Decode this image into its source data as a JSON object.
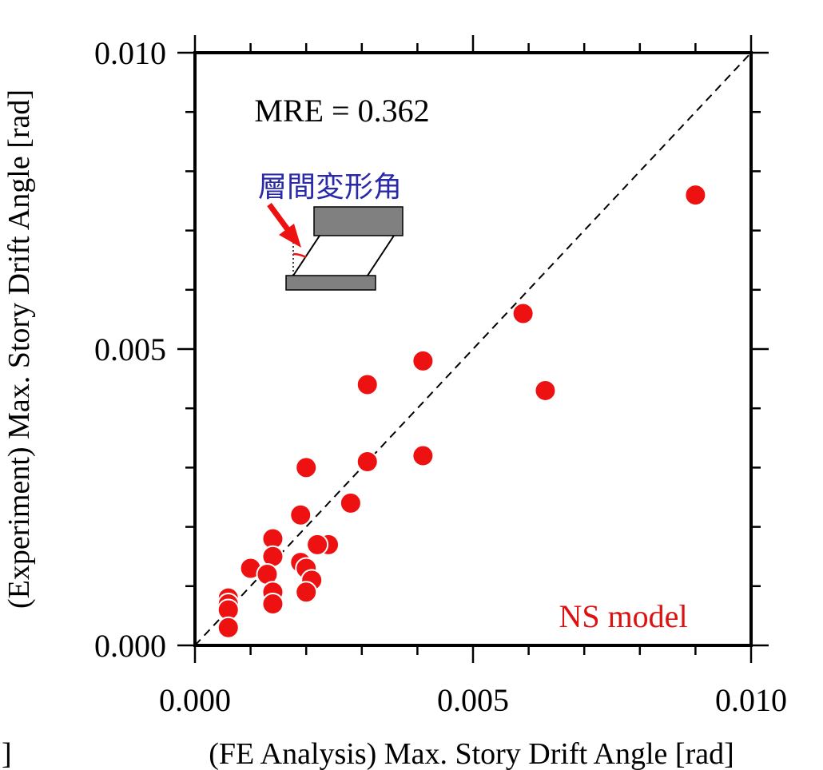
{
  "chart_data": {
    "type": "scatter",
    "xlabel": "(FE Analysis) Max. Story Drift Angle [rad]",
    "ylabel": "(Experiment) Max. Story Drift Angle [rad]",
    "left_clip_label": "]",
    "xlim": [
      0.0,
      0.01
    ],
    "ylim": [
      0.0,
      0.01
    ],
    "x_ticks": [
      "0.000",
      "0.005",
      "0.010"
    ],
    "y_ticks": [
      "0.000",
      "0.005",
      "0.010"
    ],
    "x_tick_values": [
      0.0,
      0.005,
      0.01
    ],
    "y_tick_values": [
      0.0,
      0.005,
      0.01
    ],
    "minor_tick_step": 0.001,
    "grid": false,
    "reference_line": "y = x (dashed)",
    "annotations": {
      "mre": "MRE = 0.362",
      "model": "NS model",
      "inset_label": "層間変形角"
    },
    "colors": {
      "points": "#ee1111",
      "model_label": "#dd1111",
      "inset_label": "#2a2aa8",
      "arrow": "#ee1111",
      "inset_block": "#808080"
    },
    "series": [
      {
        "points": [
          [
            0.009,
            0.0076
          ],
          [
            0.0059,
            0.0056
          ],
          [
            0.0063,
            0.0043
          ],
          [
            0.0041,
            0.0048
          ],
          [
            0.0031,
            0.0044
          ],
          [
            0.0041,
            0.0032
          ],
          [
            0.0031,
            0.0031
          ],
          [
            0.002,
            0.003
          ],
          [
            0.0028,
            0.0024
          ],
          [
            0.0019,
            0.0022
          ],
          [
            0.0014,
            0.0018
          ],
          [
            0.0024,
            0.0017
          ],
          [
            0.0022,
            0.0017
          ],
          [
            0.0014,
            0.0015
          ],
          [
            0.0019,
            0.0014
          ],
          [
            0.001,
            0.0013
          ],
          [
            0.002,
            0.0013
          ],
          [
            0.0013,
            0.0012
          ],
          [
            0.0021,
            0.0011
          ],
          [
            0.0014,
            0.0009
          ],
          [
            0.002,
            0.0009
          ],
          [
            0.0006,
            0.0008
          ],
          [
            0.0014,
            0.0007
          ],
          [
            0.0006,
            0.0007
          ],
          [
            0.0006,
            0.0006
          ],
          [
            0.0006,
            0.0003
          ]
        ]
      }
    ]
  }
}
